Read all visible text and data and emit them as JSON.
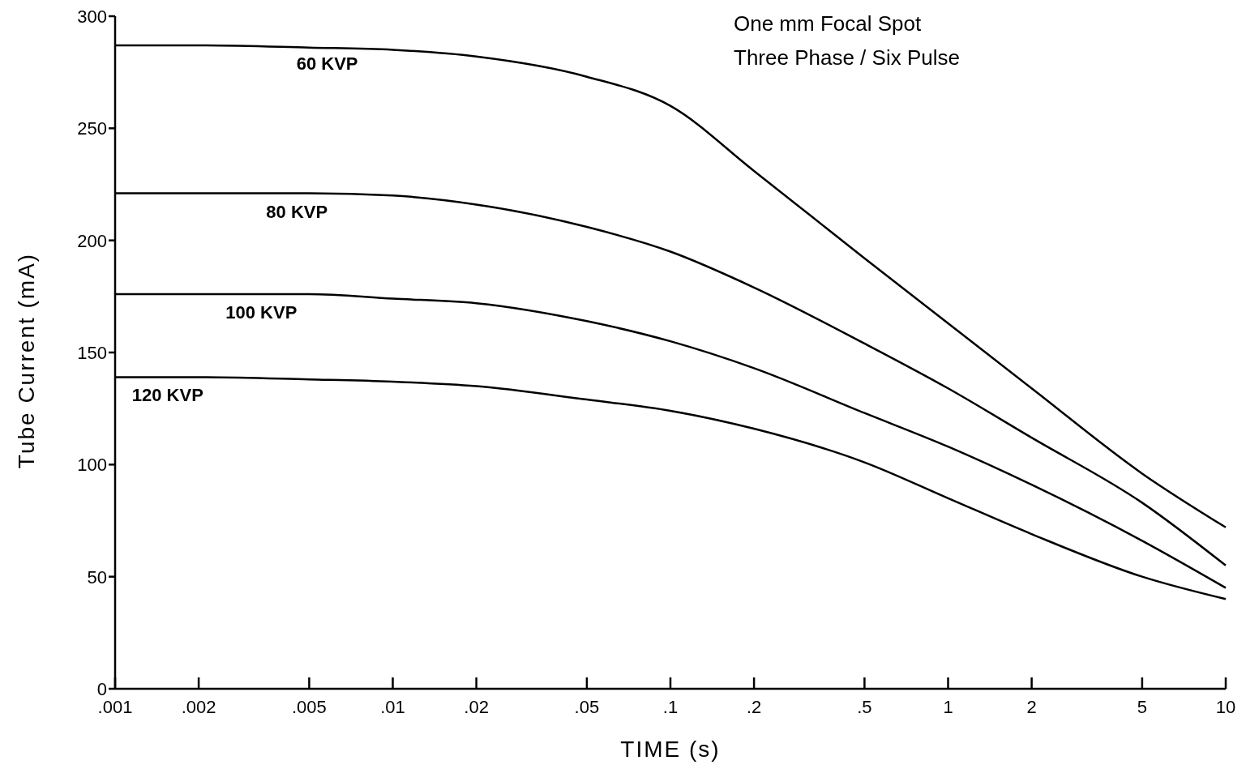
{
  "chart_data": {
    "type": "line",
    "title": "One mm Focal Spot",
    "subtitle": "Three Phase / Six Pulse",
    "xlabel": "TIME (s)",
    "ylabel": "Tube Current (mA)",
    "log": "x",
    "x": [
      0.001,
      0.002,
      0.005,
      0.01,
      0.02,
      0.05,
      0.1,
      0.2,
      0.5,
      1,
      2,
      5,
      10
    ],
    "series": [
      {
        "name": "60 KVP",
        "color": "#000000",
        "values": [
          287,
          287,
          286,
          285,
          282,
          273,
          260,
          231,
          192,
          163,
          134,
          96,
          72
        ]
      },
      {
        "name": "80 KVP",
        "color": "#000000",
        "values": [
          221,
          221,
          221,
          220,
          216,
          206,
          195,
          179,
          154,
          134,
          112,
          83,
          55
        ]
      },
      {
        "name": "100 KVP",
        "color": "#000000",
        "values": [
          176,
          176,
          176,
          174,
          172,
          164,
          155,
          143,
          123,
          108,
          91,
          66,
          45
        ]
      },
      {
        "name": "120 KVP",
        "color": "#000000",
        "values": [
          139,
          139,
          138,
          137,
          135,
          129,
          124,
          116,
          101,
          85,
          69,
          50,
          40
        ]
      }
    ],
    "xlim": [
      0.001,
      10
    ],
    "ylim": [
      0,
      300
    ],
    "xticks": [
      {
        "value": 0.001,
        "label": ".001"
      },
      {
        "value": 0.002,
        "label": ".002"
      },
      {
        "value": 0.005,
        "label": ".005"
      },
      {
        "value": 0.01,
        "label": ".01"
      },
      {
        "value": 0.02,
        "label": ".02"
      },
      {
        "value": 0.05,
        "label": ".05"
      },
      {
        "value": 0.1,
        "label": ".1"
      },
      {
        "value": 0.2,
        "label": ".2"
      },
      {
        "value": 0.5,
        "label": ".5"
      },
      1,
      2,
      5,
      10
    ],
    "yticks": [
      0,
      50,
      100,
      150,
      200,
      250,
      300
    ],
    "grid": false,
    "marker": "none",
    "line_style": "solid"
  }
}
